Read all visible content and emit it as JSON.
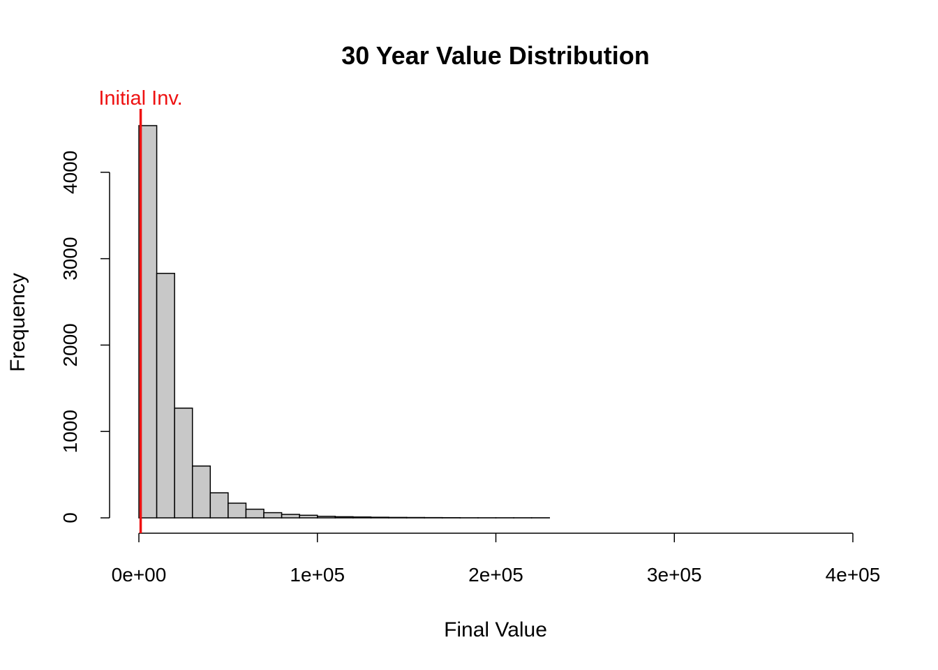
{
  "chart_data": {
    "type": "bar",
    "title": "30 Year Value Distribution",
    "xlabel": "Final Value",
    "ylabel": "Frequency",
    "bin_width": 10000,
    "bins": [
      {
        "x0": 0,
        "x1": 10000,
        "count": 4540
      },
      {
        "x0": 10000,
        "x1": 20000,
        "count": 2830
      },
      {
        "x0": 20000,
        "x1": 30000,
        "count": 1270
      },
      {
        "x0": 30000,
        "x1": 40000,
        "count": 600
      },
      {
        "x0": 40000,
        "x1": 50000,
        "count": 290
      },
      {
        "x0": 50000,
        "x1": 60000,
        "count": 170
      },
      {
        "x0": 60000,
        "x1": 70000,
        "count": 100
      },
      {
        "x0": 70000,
        "x1": 80000,
        "count": 60
      },
      {
        "x0": 80000,
        "x1": 90000,
        "count": 40
      },
      {
        "x0": 90000,
        "x1": 100000,
        "count": 30
      },
      {
        "x0": 100000,
        "x1": 110000,
        "count": 18
      },
      {
        "x0": 110000,
        "x1": 120000,
        "count": 13
      },
      {
        "x0": 120000,
        "x1": 130000,
        "count": 10
      },
      {
        "x0": 130000,
        "x1": 140000,
        "count": 7
      },
      {
        "x0": 140000,
        "x1": 150000,
        "count": 5
      },
      {
        "x0": 150000,
        "x1": 160000,
        "count": 4
      },
      {
        "x0": 160000,
        "x1": 170000,
        "count": 3
      },
      {
        "x0": 170000,
        "x1": 180000,
        "count": 2
      },
      {
        "x0": 180000,
        "x1": 190000,
        "count": 1
      },
      {
        "x0": 190000,
        "x1": 200000,
        "count": 1
      },
      {
        "x0": 200000,
        "x1": 210000,
        "count": 1
      },
      {
        "x0": 210000,
        "x1": 220000,
        "count": 1
      },
      {
        "x0": 220000,
        "x1": 230000,
        "count": 1
      },
      {
        "x0": 230000,
        "x1": 240000,
        "count": 0
      },
      {
        "x0": 240000,
        "x1": 250000,
        "count": 0
      },
      {
        "x0": 250000,
        "x1": 260000,
        "count": 0
      },
      {
        "x0": 260000,
        "x1": 270000,
        "count": 0
      },
      {
        "x0": 270000,
        "x1": 280000,
        "count": 0
      },
      {
        "x0": 280000,
        "x1": 290000,
        "count": 0
      },
      {
        "x0": 290000,
        "x1": 300000,
        "count": 0
      },
      {
        "x0": 300000,
        "x1": 310000,
        "count": 0
      },
      {
        "x0": 310000,
        "x1": 320000,
        "count": 0
      },
      {
        "x0": 320000,
        "x1": 330000,
        "count": 0
      },
      {
        "x0": 330000,
        "x1": 340000,
        "count": 0
      },
      {
        "x0": 340000,
        "x1": 350000,
        "count": 0
      },
      {
        "x0": 350000,
        "x1": 360000,
        "count": 0
      },
      {
        "x0": 360000,
        "x1": 370000,
        "count": 0
      },
      {
        "x0": 370000,
        "x1": 380000,
        "count": 0
      },
      {
        "x0": 380000,
        "x1": 390000,
        "count": 0
      },
      {
        "x0": 390000,
        "x1": 400000,
        "count": 0
      }
    ],
    "xlim": [
      0,
      400000
    ],
    "ylim": [
      0,
      4540
    ],
    "x_ticks": [
      {
        "value": 0,
        "label": "0e+00"
      },
      {
        "value": 100000,
        "label": "1e+05"
      },
      {
        "value": 200000,
        "label": "2e+05"
      },
      {
        "value": 300000,
        "label": "3e+05"
      },
      {
        "value": 400000,
        "label": "4e+05"
      }
    ],
    "y_ticks": [
      {
        "value": 0,
        "label": "0"
      },
      {
        "value": 1000,
        "label": "1000"
      },
      {
        "value": 2000,
        "label": "2000"
      },
      {
        "value": 3000,
        "label": "3000"
      },
      {
        "value": 4000,
        "label": "4000"
      }
    ],
    "bar_color": "#c8c8c8",
    "bar_border_color": "#000000",
    "grid": false,
    "legend": "none",
    "annotations": [
      {
        "type": "vline",
        "x": 1000,
        "label": "Initial Inv.",
        "color": "#ee1111"
      }
    ]
  }
}
